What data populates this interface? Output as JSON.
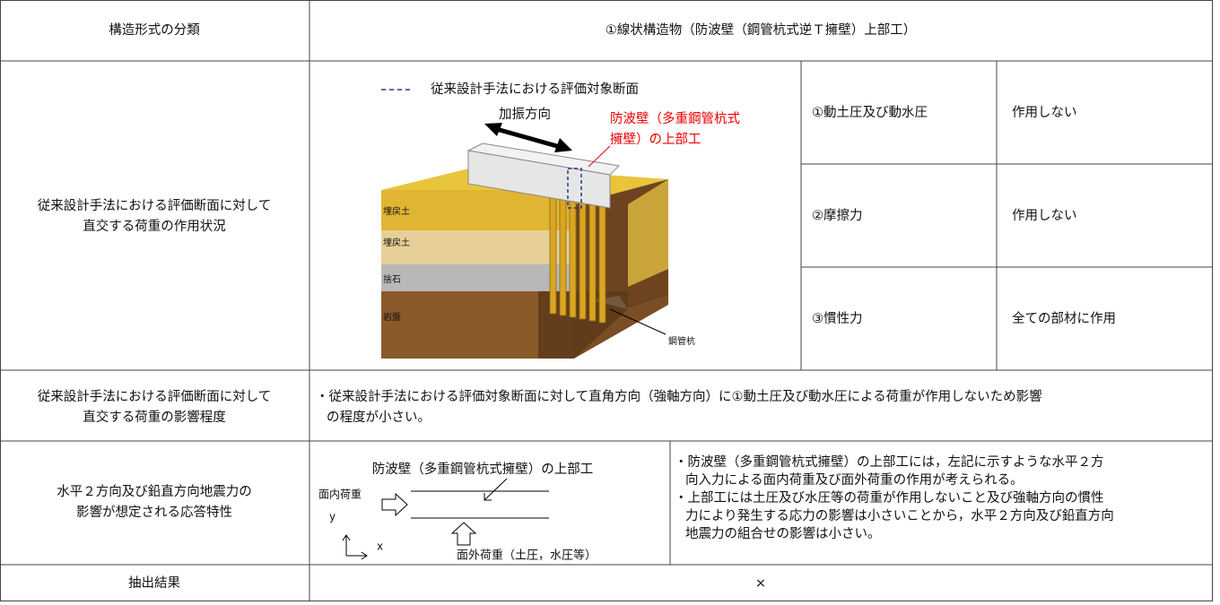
{
  "table": {
    "header": [
      "構造形式の分類",
      "①線状構造物（防波壁（鋼管杭式逆Ｔ擁壁）上部工）"
    ],
    "rows": [
      {
        "label": [
          "従来設計手法における評価断面に対して",
          "直交する荷重の作用状況"
        ],
        "items": [
          {
            "name": "①動土圧及び動水圧",
            "value": "作用しない"
          },
          {
            "name": "②摩擦力",
            "value": "作用しない"
          },
          {
            "name": "③慣性力",
            "value": "全ての部材に作用"
          }
        ]
      },
      {
        "label": [
          "従来設計手法における評価断面に対して",
          "直交する荷重の影響程度"
        ],
        "text": [
          "・従来設計手法における評価対象断面に対して直角方向（強軸方向）に①動土圧及び動水圧による荷重が作用しないため影響",
          "の程度が小さい。"
        ]
      },
      {
        "label": [
          "水平２方向及び鉛直方向地震力の",
          "影響が想定される応答特性"
        ],
        "text": [
          "・防波壁（多重鋼管杭式擁壁）の上部工には，左記に示すような水平２方",
          "向入力による面内荷重及び面外荷重の作用が考えられる。",
          "・上部工には土圧及び水圧等の荷重が作用しないこと及び強軸方向の慣性",
          "力により発生する応力の影響は小さいことから，水平２方向及び鉛直方向",
          "地震力の組合せの影響は小さい。"
        ]
      },
      {
        "label": [
          "抽出結果"
        ],
        "text": [
          "×"
        ]
      }
    ]
  },
  "figure": {
    "legend": "従来設計手法における評価対象断面",
    "direction": "加振方向",
    "target": [
      "防波壁（多重鋼管杭式",
      "擁壁）の上部工"
    ],
    "layers": [
      "埋戻土",
      "埋戻土",
      "捨石",
      "岩盤"
    ],
    "pile": "鋼管杭"
  },
  "diagram": {
    "title": "防波壁（多重鋼管杭式擁壁）の上部工",
    "in_plane": "面内荷重",
    "y": "y",
    "x": "x",
    "out_of_plane": "面外荷重（土圧，水圧等）"
  }
}
